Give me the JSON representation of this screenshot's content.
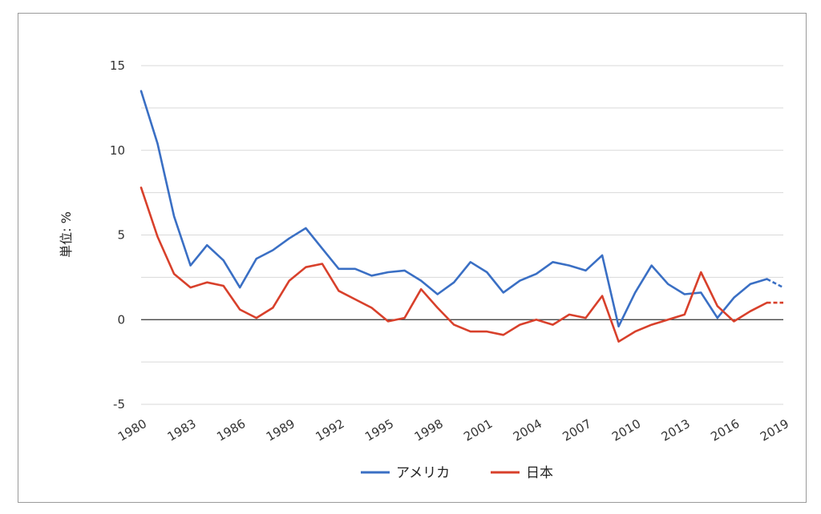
{
  "chart_data": {
    "type": "line",
    "title": "",
    "xlabel": "",
    "ylabel": "単位: %",
    "ylim": [
      -5,
      15
    ],
    "yticks": [
      -5,
      0,
      5,
      10,
      15
    ],
    "ytick_labels": [
      "-5",
      "0",
      "5",
      "10",
      "15"
    ],
    "x": [
      1980,
      1981,
      1982,
      1983,
      1984,
      1985,
      1986,
      1987,
      1988,
      1989,
      1990,
      1991,
      1992,
      1993,
      1994,
      1995,
      1996,
      1997,
      1998,
      1999,
      2000,
      2001,
      2002,
      2003,
      2004,
      2005,
      2006,
      2007,
      2008,
      2009,
      2010,
      2011,
      2012,
      2013,
      2014,
      2015,
      2016,
      2017,
      2018,
      2019
    ],
    "xtick_labels": [
      "1980",
      "1983",
      "1986",
      "1989",
      "1992",
      "1995",
      "1998",
      "2001",
      "2004",
      "2007",
      "2010",
      "2013",
      "2016",
      "2019"
    ],
    "xtick_values": [
      1980,
      1983,
      1986,
      1989,
      1992,
      1995,
      1998,
      2001,
      2004,
      2007,
      2010,
      2013,
      2016,
      2019
    ],
    "grid": true,
    "legend_position": "bottom",
    "series": [
      {
        "name": "アメリカ",
        "color": "#3a6fc4",
        "values": [
          13.5,
          10.4,
          6.1,
          3.2,
          4.4,
          3.5,
          1.9,
          3.6,
          4.1,
          4.8,
          5.4,
          4.2,
          3.0,
          3.0,
          2.6,
          2.8,
          2.9,
          2.3,
          1.5,
          2.2,
          3.4,
          2.8,
          1.6,
          2.3,
          2.7,
          3.4,
          3.2,
          2.9,
          3.8,
          -0.4,
          1.6,
          3.2,
          2.1,
          1.5,
          1.6,
          0.1,
          1.3,
          2.1,
          2.4,
          1.9
        ],
        "dashed_from": 2018
      },
      {
        "name": "日本",
        "color": "#d8402b",
        "values": [
          7.8,
          4.9,
          2.7,
          1.9,
          2.2,
          2.0,
          0.6,
          0.1,
          0.7,
          2.3,
          3.1,
          3.3,
          1.7,
          1.2,
          0.7,
          -0.1,
          0.1,
          1.8,
          0.7,
          -0.3,
          -0.7,
          -0.7,
          -0.9,
          -0.3,
          0.0,
          -0.3,
          0.3,
          0.1,
          1.4,
          -1.3,
          -0.7,
          -0.3,
          0.0,
          0.3,
          2.8,
          0.8,
          -0.1,
          0.5,
          1.0,
          1.0
        ],
        "dashed_from": 2018
      }
    ]
  }
}
